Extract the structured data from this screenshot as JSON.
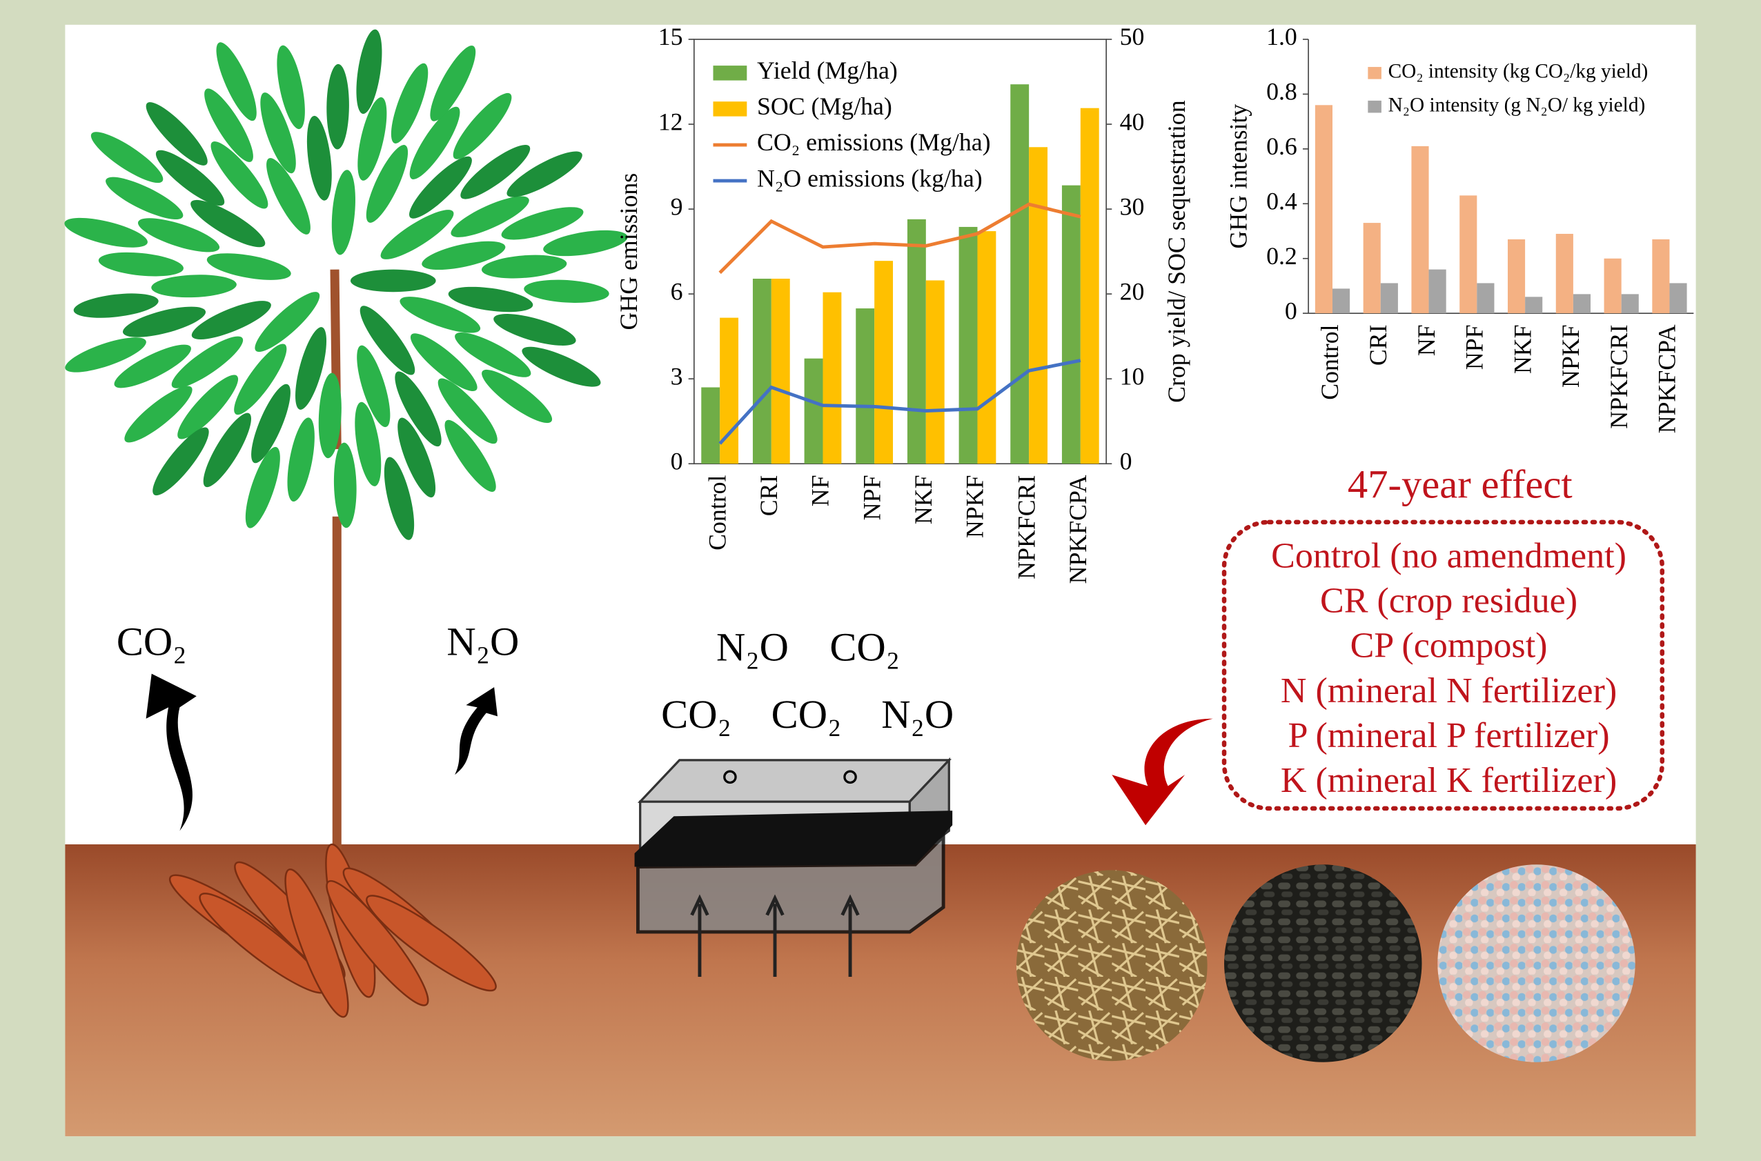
{
  "chart_data": [
    {
      "type": "bar",
      "ylabel": "GHG emissions",
      "y2label": "Crop yield/ SOC sequestration",
      "categories": [
        "Control",
        "CRI",
        "NF",
        "NPF",
        "NKF",
        "NPKF",
        "NPKFCRI",
        "NPKFCPA"
      ],
      "ylim": [
        0,
        15
      ],
      "yticks": [
        0,
        3,
        6,
        9,
        12,
        15
      ],
      "y2lim": [
        0,
        50
      ],
      "y2ticks": [
        0,
        10,
        20,
        30,
        40,
        50
      ],
      "series": [
        {
          "name": "Yield (Mg/ha)",
          "type": "bar",
          "axis": "y2",
          "color": "#70ad47",
          "values": [
            9.0,
            21.8,
            12.4,
            18.3,
            28.8,
            27.9,
            44.7,
            32.8
          ]
        },
        {
          "name": "SOC (Mg/ha)",
          "type": "bar",
          "axis": "y2",
          "color": "#ffc000",
          "values": [
            17.2,
            21.8,
            20.2,
            23.9,
            21.6,
            27.4,
            37.3,
            41.9
          ]
        },
        {
          "name": "CO₂ emissions (Mg/ha)",
          "type": "line",
          "color": "#ed7d31",
          "values": [
            6.75,
            8.57,
            7.66,
            7.78,
            7.7,
            8.13,
            9.17,
            8.73
          ]
        },
        {
          "name": "N₂O emissions (kg/ha)",
          "type": "line",
          "color": "#4472c4",
          "values": [
            0.71,
            2.7,
            2.06,
            2.02,
            1.87,
            1.94,
            3.29,
            3.65
          ]
        }
      ]
    },
    {
      "type": "bar",
      "ylabel": "GHG intensity",
      "categories": [
        "Control",
        "CRI",
        "NF",
        "NPF",
        "NKF",
        "NPKF",
        "NPKFCRI",
        "NPKFCPA"
      ],
      "ylim": [
        0,
        1
      ],
      "yticks": [
        0,
        0.2,
        0.4,
        0.6,
        0.8,
        {
          "value": 1,
          "label": "1.0"
        }
      ],
      "series": [
        {
          "name": "CO₂ intensity (kg CO₂/kg yield)",
          "type": "bar",
          "color": "#f4b183",
          "values": [
            0.76,
            0.33,
            0.61,
            0.43,
            0.27,
            0.29,
            0.2,
            0.27
          ]
        },
        {
          "name": "N₂O intensity (g N₂O/ kg yield)",
          "type": "bar",
          "color": "#a5a5a5",
          "values": [
            0.09,
            0.11,
            0.16,
            0.11,
            0.06,
            0.07,
            0.07,
            0.11
          ]
        }
      ]
    }
  ],
  "illustration": {
    "gas_labels": [
      "CO₂",
      "N₂O",
      "N₂O",
      "CO₂",
      "CO₂",
      "CO₂",
      "N₂O"
    ],
    "effect_title": "47-year effect",
    "treatments": [
      "Control (no amendment)",
      "CR (crop residue)",
      "CP (compost)",
      "N (mineral N fertilizer)",
      "P (mineral P fertilizer)",
      "K (mineral K fertilizer)"
    ]
  }
}
